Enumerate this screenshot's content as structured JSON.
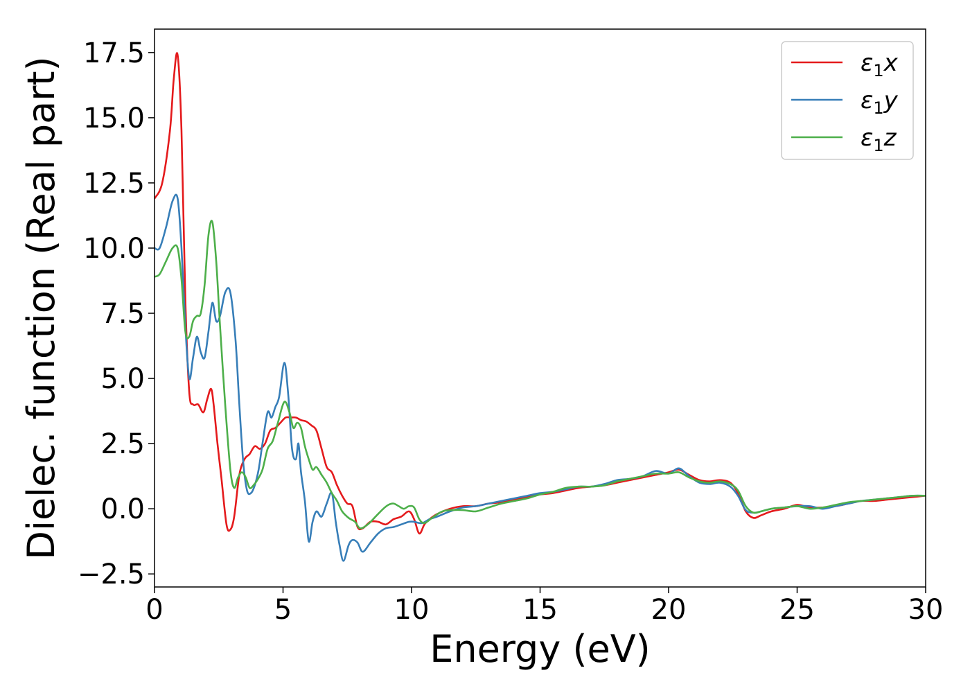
{
  "chart_data": {
    "type": "line",
    "xlabel": "Energy (eV)",
    "ylabel": "Dielec. function (Real part)",
    "xlim": [
      0,
      30
    ],
    "ylim": [
      -3.0,
      18.4
    ],
    "xticks": [
      0,
      5,
      10,
      15,
      20,
      25,
      30
    ],
    "yticks": [
      -2.5,
      0.0,
      2.5,
      5.0,
      7.5,
      10.0,
      12.5,
      15.0,
      17.5
    ],
    "grid": false,
    "legend_position": "top-right",
    "series": [
      {
        "name": "x",
        "color": "#e41a1c",
        "x": [
          0,
          0.3,
          0.6,
          0.75,
          0.9,
          1.05,
          1.2,
          1.35,
          1.5,
          1.7,
          1.9,
          2.05,
          2.2,
          2.3,
          2.45,
          2.6,
          2.8,
          2.95,
          3.1,
          3.3,
          3.5,
          3.7,
          3.9,
          4.1,
          4.3,
          4.5,
          4.7,
          4.9,
          5.1,
          5.3,
          5.5,
          5.7,
          5.9,
          6.1,
          6.3,
          6.5,
          6.7,
          6.9,
          7.1,
          7.3,
          7.5,
          7.7,
          7.9,
          8.1,
          8.4,
          8.7,
          9.0,
          9.3,
          9.6,
          9.9,
          10.1,
          10.3,
          10.5,
          10.7,
          11.0,
          11.5,
          12.0,
          12.5,
          13.0,
          13.5,
          14.0,
          14.5,
          15.0,
          15.5,
          16.0,
          16.5,
          17.0,
          17.5,
          18.0,
          18.5,
          19.0,
          19.5,
          20.0,
          20.4,
          20.8,
          21.2,
          21.6,
          22.0,
          22.4,
          22.7,
          23.0,
          23.3,
          23.6,
          24.0,
          24.5,
          25.0,
          25.5,
          26.0,
          26.5,
          27.0,
          27.5,
          28.0,
          28.5,
          29.0,
          29.5,
          30.0
        ],
        "y": [
          11.9,
          12.5,
          14.5,
          16.5,
          17.4,
          14.5,
          8.0,
          4.5,
          4.0,
          4.0,
          3.7,
          4.2,
          4.6,
          4.0,
          2.5,
          1.2,
          -0.6,
          -0.8,
          -0.3,
          1.3,
          1.9,
          2.1,
          2.4,
          2.3,
          2.5,
          3.0,
          3.1,
          3.3,
          3.5,
          3.5,
          3.5,
          3.4,
          3.35,
          3.2,
          3.0,
          2.3,
          1.6,
          1.4,
          0.9,
          0.5,
          0.2,
          0.1,
          -0.7,
          -0.75,
          -0.5,
          -0.5,
          -0.6,
          -0.4,
          -0.3,
          -0.1,
          -0.4,
          -0.95,
          -0.6,
          -0.4,
          -0.2,
          0.0,
          0.1,
          0.1,
          0.2,
          0.25,
          0.35,
          0.45,
          0.55,
          0.6,
          0.7,
          0.8,
          0.85,
          0.9,
          1.0,
          1.1,
          1.2,
          1.3,
          1.4,
          1.5,
          1.3,
          1.1,
          1.05,
          1.1,
          1.0,
          0.6,
          -0.1,
          -0.35,
          -0.25,
          -0.1,
          0.0,
          0.15,
          0.05,
          0.05,
          0.1,
          0.2,
          0.3,
          0.3,
          0.35,
          0.4,
          0.45,
          0.5
        ]
      },
      {
        "name": "y",
        "color": "#377eb8",
        "x": [
          0,
          0.2,
          0.45,
          0.7,
          0.9,
          1.05,
          1.2,
          1.35,
          1.5,
          1.65,
          1.8,
          1.95,
          2.1,
          2.25,
          2.4,
          2.55,
          2.75,
          2.95,
          3.15,
          3.3,
          3.45,
          3.6,
          3.75,
          3.9,
          4.05,
          4.2,
          4.4,
          4.55,
          4.7,
          4.85,
          5.05,
          5.2,
          5.35,
          5.5,
          5.6,
          5.7,
          5.85,
          6.0,
          6.15,
          6.3,
          6.5,
          6.7,
          6.9,
          7.05,
          7.2,
          7.35,
          7.55,
          7.7,
          7.9,
          8.1,
          8.4,
          8.7,
          9.0,
          9.3,
          9.6,
          9.9,
          10.1,
          10.4,
          10.7,
          11.0,
          11.5,
          12.0,
          12.5,
          13.0,
          13.5,
          14.0,
          14.5,
          15.0,
          15.5,
          16.0,
          16.5,
          17.0,
          17.5,
          18.0,
          18.5,
          19.0,
          19.5,
          20.0,
          20.4,
          20.8,
          21.2,
          21.6,
          22.0,
          22.4,
          22.7,
          23.0,
          23.3,
          23.6,
          24.0,
          24.5,
          25.0,
          25.5,
          26.0,
          26.5,
          27.0,
          27.5,
          28.0,
          28.5,
          29.0,
          29.5,
          30.0
        ],
        "y": [
          10.0,
          10.0,
          10.8,
          11.8,
          11.9,
          10.0,
          7.0,
          5.0,
          5.8,
          6.6,
          6.0,
          5.8,
          6.8,
          7.9,
          7.2,
          7.4,
          8.3,
          8.3,
          6.5,
          4.0,
          1.8,
          0.7,
          0.6,
          0.9,
          1.5,
          2.5,
          3.7,
          3.5,
          3.9,
          4.3,
          5.6,
          4.4,
          2.3,
          1.9,
          2.5,
          1.4,
          0.3,
          -1.25,
          -0.5,
          -0.1,
          -0.3,
          0.2,
          0.6,
          -0.5,
          -1.4,
          -2.0,
          -1.4,
          -1.2,
          -1.3,
          -1.65,
          -1.3,
          -0.95,
          -0.75,
          -0.7,
          -0.6,
          -0.5,
          -0.5,
          -0.55,
          -0.4,
          -0.3,
          -0.1,
          0.05,
          0.1,
          0.2,
          0.3,
          0.4,
          0.5,
          0.6,
          0.65,
          0.75,
          0.85,
          0.85,
          0.95,
          1.1,
          1.15,
          1.25,
          1.45,
          1.35,
          1.55,
          1.25,
          1.0,
          0.95,
          1.0,
          0.85,
          0.5,
          -0.05,
          -0.15,
          -0.1,
          0.0,
          0.05,
          0.1,
          0.1,
          0.0,
          0.1,
          0.2,
          0.3,
          0.35,
          0.4,
          0.45,
          0.5,
          0.5
        ]
      },
      {
        "name": "z",
        "color": "#4daf4a",
        "x": [
          0,
          0.2,
          0.45,
          0.7,
          0.9,
          1.05,
          1.2,
          1.35,
          1.5,
          1.65,
          1.8,
          1.95,
          2.1,
          2.25,
          2.4,
          2.55,
          2.75,
          2.95,
          3.1,
          3.25,
          3.4,
          3.55,
          3.7,
          3.85,
          4.0,
          4.2,
          4.4,
          4.6,
          4.8,
          5.05,
          5.25,
          5.4,
          5.55,
          5.7,
          5.85,
          6.0,
          6.15,
          6.3,
          6.5,
          6.7,
          6.9,
          7.1,
          7.3,
          7.55,
          7.8,
          8.0,
          8.3,
          8.6,
          8.9,
          9.1,
          9.3,
          9.5,
          9.7,
          9.9,
          10.1,
          10.3,
          10.5,
          10.8,
          11.2,
          11.6,
          12.0,
          12.5,
          13.0,
          13.5,
          14.0,
          14.5,
          15.0,
          15.5,
          16.0,
          16.5,
          17.0,
          17.5,
          18.0,
          18.5,
          19.0,
          19.5,
          20.0,
          20.4,
          20.8,
          21.2,
          21.6,
          22.0,
          22.4,
          22.7,
          23.0,
          23.3,
          23.6,
          24.0,
          24.5,
          25.0,
          25.5,
          26.0,
          26.5,
          27.0,
          27.5,
          28.0,
          28.5,
          29.0,
          29.5,
          30.0
        ],
        "y": [
          8.9,
          9.0,
          9.5,
          10.0,
          10.0,
          8.8,
          6.8,
          6.6,
          7.2,
          7.4,
          7.5,
          8.6,
          10.5,
          11.0,
          9.5,
          7.0,
          4.0,
          1.5,
          0.8,
          1.2,
          1.4,
          1.2,
          0.8,
          0.9,
          1.1,
          1.5,
          2.3,
          2.6,
          3.3,
          4.1,
          3.7,
          3.1,
          3.3,
          3.1,
          2.4,
          1.9,
          1.5,
          1.6,
          1.3,
          1.0,
          0.6,
          0.3,
          -0.1,
          -0.35,
          -0.5,
          -0.75,
          -0.6,
          -0.3,
          0.0,
          0.15,
          0.2,
          0.1,
          0.0,
          0.1,
          0.05,
          -0.4,
          -0.55,
          -0.35,
          -0.1,
          -0.05,
          -0.05,
          -0.1,
          0.05,
          0.2,
          0.3,
          0.4,
          0.55,
          0.65,
          0.8,
          0.85,
          0.85,
          0.9,
          1.05,
          1.15,
          1.25,
          1.35,
          1.35,
          1.4,
          1.2,
          1.05,
          1.0,
          1.05,
          0.95,
          0.7,
          0.1,
          -0.15,
          -0.1,
          0.0,
          0.05,
          0.1,
          0.0,
          0.05,
          0.15,
          0.25,
          0.3,
          0.35,
          0.4,
          0.45,
          0.5,
          0.5
        ]
      }
    ]
  }
}
